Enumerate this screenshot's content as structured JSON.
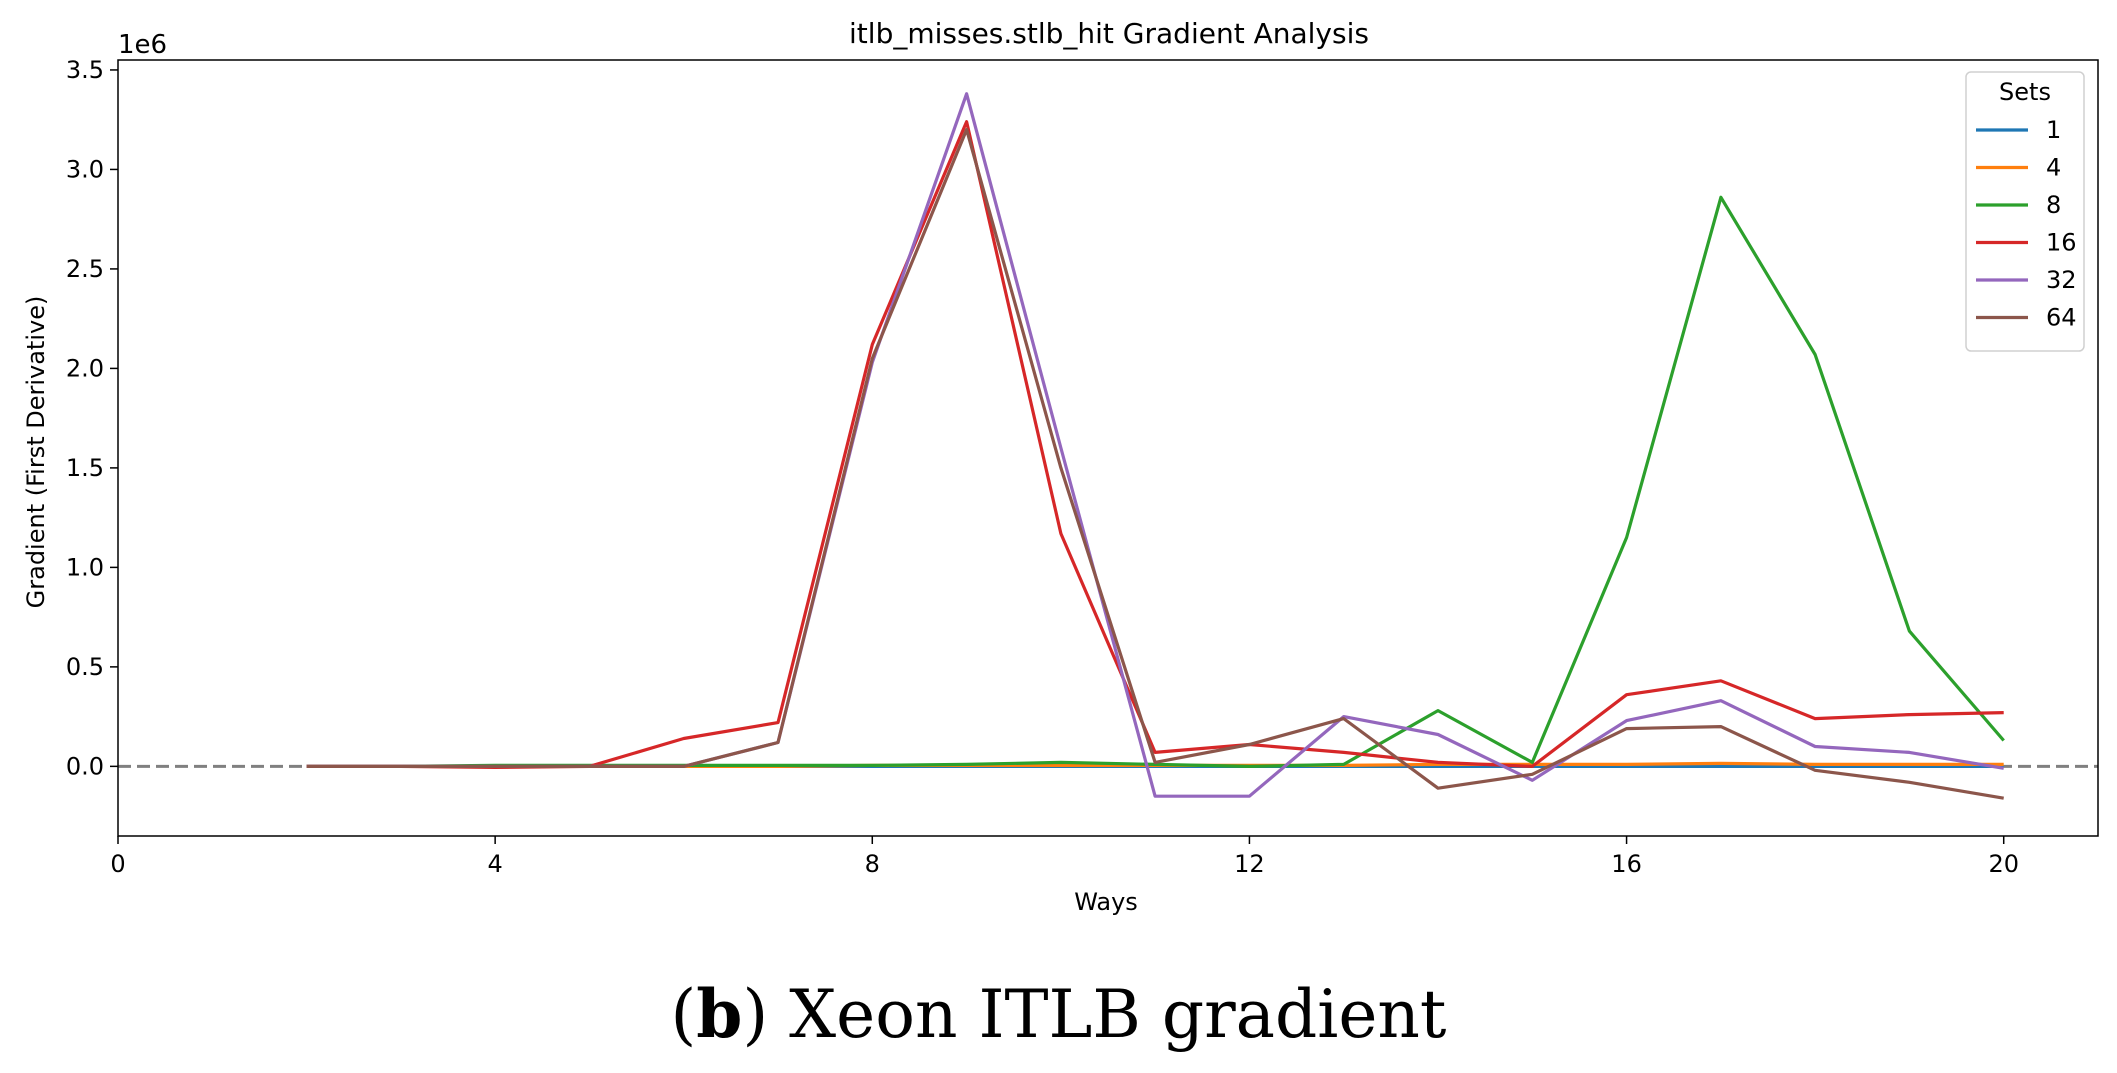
{
  "chart_data": {
    "type": "line",
    "title": "itlb_misses.stlb_hit Gradient Analysis",
    "xlabel": "Ways",
    "ylabel": "Gradient (First Derivative)",
    "y_scale_label": "1e6",
    "xlim": [
      0,
      21
    ],
    "ylim": [
      -0.35,
      3.55
    ],
    "x_ticks": [
      0,
      4,
      8,
      12,
      16,
      20
    ],
    "y_ticks": [
      0.0,
      0.5,
      1.0,
      1.5,
      2.0,
      2.5,
      3.0,
      3.5
    ],
    "y_tick_labels": [
      "0.0",
      "0.5",
      "1.0",
      "1.5",
      "2.0",
      "2.5",
      "3.0",
      "3.5"
    ],
    "reference_line_y": 0,
    "grid": false,
    "legend_title": "Sets",
    "legend_placement": "top-right",
    "x": [
      2,
      3,
      4,
      5,
      6,
      7,
      8,
      9,
      10,
      11,
      12,
      13,
      14,
      15,
      16,
      17,
      18,
      19,
      20
    ],
    "series": [
      {
        "name": "1",
        "color": "#1f77b4",
        "values": [
          0.0,
          0.0,
          0.0,
          0.0,
          0.0,
          0.0,
          0.0,
          0.0,
          0.0,
          0.0,
          0.0,
          0.0,
          0.0,
          0.0,
          0.0,
          0.0,
          0.0,
          0.0,
          0.0
        ]
      },
      {
        "name": "4",
        "color": "#ff7f0e",
        "values": [
          0.0,
          0.0,
          0.0,
          0.0,
          0.0,
          0.0,
          0.005,
          0.005,
          0.005,
          0.005,
          0.005,
          0.005,
          0.01,
          0.01,
          0.01,
          0.015,
          0.01,
          0.01,
          0.01
        ]
      },
      {
        "name": "8",
        "color": "#2ca02c",
        "values": [
          0.0,
          0.0,
          0.005,
          0.005,
          0.005,
          0.005,
          0.005,
          0.01,
          0.02,
          0.01,
          0.0,
          0.01,
          0.28,
          0.02,
          1.15,
          2.86,
          2.07,
          0.68,
          0.13
        ]
      },
      {
        "name": "16",
        "color": "#d62728",
        "values": [
          0.0,
          0.0,
          -0.005,
          0.0,
          0.14,
          0.22,
          2.12,
          3.24,
          1.17,
          0.07,
          0.11,
          0.07,
          0.02,
          0.0,
          0.36,
          0.43,
          0.24,
          0.26,
          0.27
        ]
      },
      {
        "name": "32",
        "color": "#9467bd",
        "values": [
          0.0,
          0.0,
          0.0,
          0.0,
          0.0,
          0.12,
          2.03,
          3.38,
          1.6,
          -0.15,
          -0.15,
          0.25,
          0.16,
          -0.07,
          0.23,
          0.33,
          0.1,
          0.07,
          -0.01
        ]
      },
      {
        "name": "64",
        "color": "#8c564b",
        "values": [
          0.0,
          0.0,
          0.0,
          0.0,
          0.0,
          0.12,
          2.05,
          3.2,
          1.5,
          0.02,
          0.11,
          0.24,
          -0.11,
          -0.04,
          0.19,
          0.2,
          -0.02,
          -0.08,
          -0.16
        ]
      }
    ]
  },
  "caption": {
    "label": "b",
    "open_paren": "(",
    "close_paren": ")",
    "text": " Xeon ITLB gradient"
  }
}
